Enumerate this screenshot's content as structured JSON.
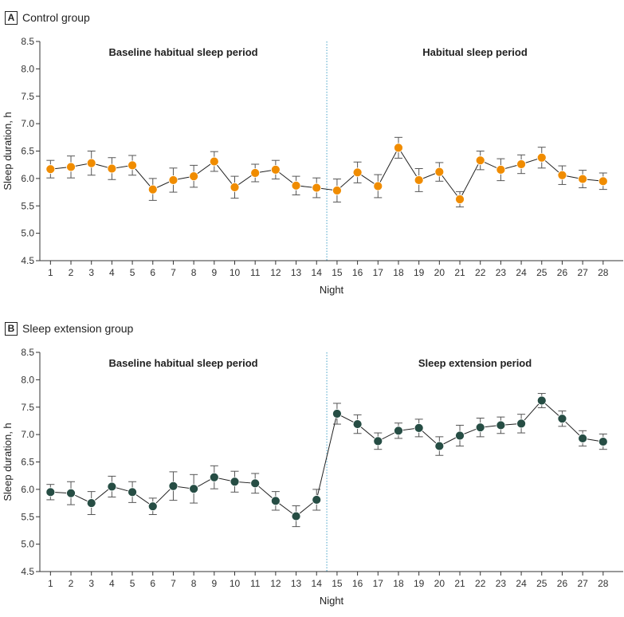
{
  "panels": [
    {
      "letter": "A",
      "title": "Control group",
      "chart_data": {
        "type": "line",
        "ylabel": "Sleep duration, h",
        "xlabel": "Night",
        "ylim": [
          4.5,
          8.5
        ],
        "yticks": [
          "4.5",
          "5.0",
          "5.5",
          "6.0",
          "6.5",
          "7.0",
          "7.5",
          "8.0",
          "8.5"
        ],
        "x": [
          1,
          2,
          3,
          4,
          5,
          6,
          7,
          8,
          9,
          10,
          11,
          12,
          13,
          14,
          15,
          16,
          17,
          18,
          19,
          20,
          21,
          22,
          23,
          24,
          25,
          26,
          27,
          28
        ],
        "period_divider_after_night": 14.5,
        "period_labels": [
          "Baseline habitual sleep period",
          "Habitual sleep period"
        ],
        "marker_color": "#f08c00",
        "series": [
          {
            "values": [
              6.17,
              6.21,
              6.28,
              6.18,
              6.24,
              5.8,
              5.97,
              6.04,
              6.31,
              5.84,
              6.1,
              6.16,
              5.87,
              5.83,
              5.78,
              6.11,
              5.86,
              6.56,
              5.97,
              6.12,
              5.62,
              6.33,
              6.16,
              6.26,
              6.38,
              6.06,
              5.99,
              5.95
            ],
            "err": [
              0.16,
              0.2,
              0.22,
              0.2,
              0.18,
              0.2,
              0.22,
              0.2,
              0.18,
              0.2,
              0.16,
              0.17,
              0.17,
              0.18,
              0.21,
              0.19,
              0.21,
              0.19,
              0.21,
              0.17,
              0.14,
              0.17,
              0.2,
              0.17,
              0.19,
              0.17,
              0.16,
              0.15
            ]
          }
        ]
      }
    },
    {
      "letter": "B",
      "title": "Sleep extension group",
      "chart_data": {
        "type": "line",
        "ylabel": "Sleep duration, h",
        "xlabel": "Night",
        "ylim": [
          4.5,
          8.5
        ],
        "yticks": [
          "4.5",
          "5.0",
          "5.5",
          "6.0",
          "6.5",
          "7.0",
          "7.5",
          "8.0",
          "8.5"
        ],
        "x": [
          1,
          2,
          3,
          4,
          5,
          6,
          7,
          8,
          9,
          10,
          11,
          12,
          13,
          14,
          15,
          16,
          17,
          18,
          19,
          20,
          21,
          22,
          23,
          24,
          25,
          26,
          27,
          28
        ],
        "period_divider_after_night": 14.5,
        "period_labels": [
          "Baseline habitual sleep period",
          "Sleep extension period"
        ],
        "marker_color": "#264d44",
        "series": [
          {
            "values": [
              5.95,
              5.93,
              5.75,
              6.05,
              5.95,
              5.69,
              6.06,
              6.01,
              6.22,
              6.14,
              6.11,
              5.79,
              5.51,
              5.81,
              7.38,
              7.19,
              6.88,
              7.07,
              7.12,
              6.79,
              6.98,
              7.13,
              7.17,
              7.2,
              7.62,
              7.29,
              6.93,
              6.87
            ],
            "err": [
              0.14,
              0.21,
              0.21,
              0.19,
              0.19,
              0.15,
              0.26,
              0.26,
              0.21,
              0.19,
              0.18,
              0.17,
              0.19,
              0.19,
              0.19,
              0.17,
              0.15,
              0.14,
              0.16,
              0.17,
              0.19,
              0.17,
              0.15,
              0.17,
              0.13,
              0.14,
              0.14,
              0.14
            ]
          }
        ]
      }
    }
  ]
}
